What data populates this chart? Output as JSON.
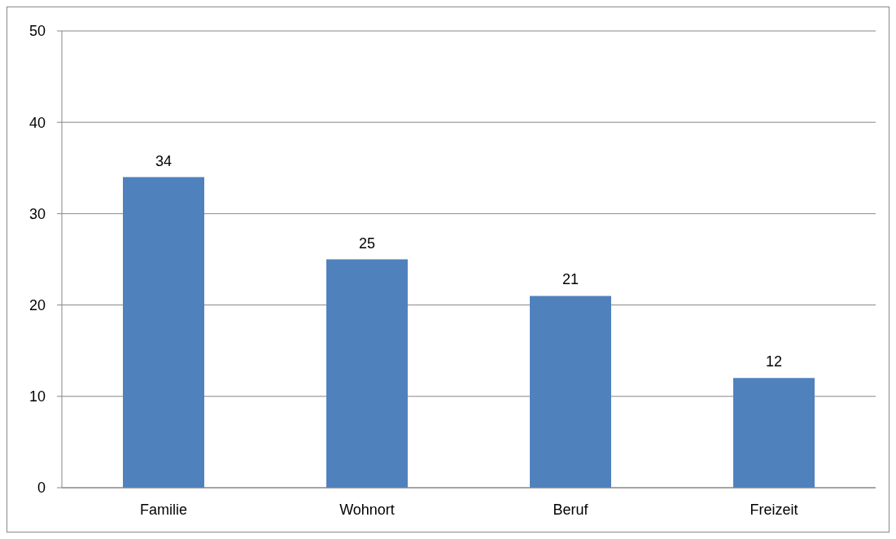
{
  "chart_data": {
    "type": "bar",
    "categories": [
      "Familie",
      "Wohnort",
      "Beruf",
      "Freizeit"
    ],
    "values": [
      34,
      25,
      21,
      12
    ],
    "color": "#4f81bd",
    "ylim": [
      0,
      50
    ],
    "yticks": [
      0,
      10,
      20,
      30,
      40,
      50
    ],
    "grid": "y",
    "data_labels": true,
    "legend": false
  }
}
